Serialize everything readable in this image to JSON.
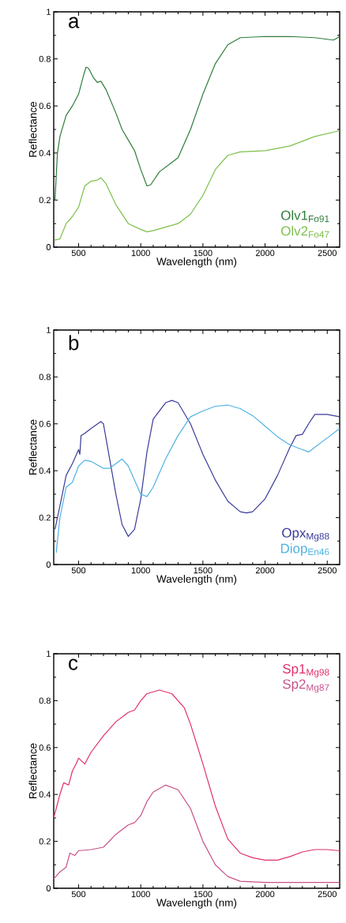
{
  "chart_data": [
    {
      "type": "line",
      "title": "a",
      "xlabel": "Wavelength (nm)",
      "ylabel": "Reflectance",
      "xlim": [
        300,
        2600
      ],
      "ylim": [
        0,
        1
      ],
      "xticks": [
        500,
        1000,
        1500,
        2000,
        2500
      ],
      "yticks": [
        0,
        0.2,
        0.4,
        0.6,
        0.8,
        1
      ],
      "legend": "bottom right",
      "marker": "none",
      "line_style": "solid",
      "series": [
        {
          "name": "Olv1$_{Fo91}$",
          "color": "#2e7d3a",
          "x": [
            310,
            330,
            350,
            400,
            450,
            500,
            540,
            560,
            580,
            620,
            650,
            680,
            720,
            800,
            850,
            900,
            950,
            1000,
            1050,
            1080,
            1150,
            1250,
            1300,
            1400,
            1500,
            1600,
            1700,
            1800,
            2000,
            2200,
            2400,
            2550,
            2600
          ],
          "values": [
            0.2,
            0.4,
            0.47,
            0.56,
            0.6,
            0.65,
            0.73,
            0.765,
            0.76,
            0.72,
            0.7,
            0.705,
            0.67,
            0.57,
            0.5,
            0.455,
            0.41,
            0.33,
            0.26,
            0.265,
            0.32,
            0.36,
            0.38,
            0.5,
            0.65,
            0.78,
            0.86,
            0.89,
            0.895,
            0.895,
            0.89,
            0.88,
            0.895
          ]
        },
        {
          "name": "Olv2$_{Fo47}$",
          "color": "#7cc04a",
          "x": [
            305,
            350,
            400,
            450,
            500,
            550,
            600,
            650,
            680,
            720,
            800,
            900,
            1000,
            1050,
            1100,
            1200,
            1300,
            1400,
            1500,
            1600,
            1700,
            1800,
            2000,
            2200,
            2400,
            2600
          ],
          "values": [
            0.03,
            0.035,
            0.1,
            0.13,
            0.17,
            0.26,
            0.28,
            0.285,
            0.295,
            0.27,
            0.18,
            0.1,
            0.075,
            0.065,
            0.07,
            0.085,
            0.1,
            0.14,
            0.22,
            0.33,
            0.39,
            0.405,
            0.41,
            0.43,
            0.47,
            0.495
          ]
        }
      ]
    },
    {
      "type": "line",
      "title": "b",
      "xlabel": "Wavelength (nm)",
      "ylabel": "Reflectance",
      "xlim": [
        300,
        2600
      ],
      "ylim": [
        0,
        1
      ],
      "xticks": [
        500,
        1000,
        1500,
        2000,
        2500
      ],
      "yticks": [
        0,
        0.2,
        0.4,
        0.6,
        0.8,
        1
      ],
      "legend": "bottom right",
      "marker": "none",
      "line_style": "solid",
      "series": [
        {
          "name": "Opx$_{Mg88}$",
          "color": "#3a3a9a",
          "x": [
            310,
            350,
            400,
            450,
            500,
            510,
            520,
            550,
            600,
            680,
            700,
            750,
            800,
            850,
            900,
            950,
            1000,
            1050,
            1100,
            1200,
            1250,
            1300,
            1400,
            1500,
            1600,
            1700,
            1800,
            1850,
            1900,
            2000,
            2100,
            2200,
            2250,
            2300,
            2350,
            2400,
            2500,
            2600
          ],
          "values": [
            0.15,
            0.25,
            0.38,
            0.43,
            0.49,
            0.47,
            0.55,
            0.56,
            0.58,
            0.61,
            0.6,
            0.45,
            0.3,
            0.17,
            0.12,
            0.15,
            0.28,
            0.48,
            0.62,
            0.69,
            0.7,
            0.69,
            0.6,
            0.47,
            0.36,
            0.27,
            0.225,
            0.22,
            0.225,
            0.28,
            0.38,
            0.5,
            0.55,
            0.555,
            0.6,
            0.64,
            0.64,
            0.63
          ]
        },
        {
          "name": "Diop$_{En46}$",
          "color": "#4fb3e3",
          "x": [
            320,
            350,
            400,
            450,
            500,
            550,
            600,
            700,
            750,
            800,
            850,
            900,
            950,
            1000,
            1050,
            1100,
            1200,
            1300,
            1400,
            1500,
            1600,
            1700,
            1800,
            1900,
            2000,
            2100,
            2200,
            2300,
            2350,
            2400,
            2500,
            2600
          ],
          "values": [
            0.05,
            0.2,
            0.33,
            0.35,
            0.42,
            0.445,
            0.44,
            0.41,
            0.41,
            0.43,
            0.45,
            0.42,
            0.36,
            0.3,
            0.29,
            0.33,
            0.45,
            0.55,
            0.63,
            0.655,
            0.675,
            0.68,
            0.665,
            0.635,
            0.59,
            0.545,
            0.51,
            0.49,
            0.48,
            0.5,
            0.54,
            0.58
          ]
        }
      ]
    },
    {
      "type": "line",
      "title": "c",
      "xlabel": "Wavelength (nm)",
      "ylabel": "Reflectance",
      "xlim": [
        300,
        2600
      ],
      "ylim": [
        0,
        1
      ],
      "xticks": [
        500,
        1000,
        1500,
        2000,
        2500
      ],
      "yticks": [
        0,
        0.2,
        0.4,
        0.6,
        0.8,
        1
      ],
      "legend": "top right",
      "marker": "none",
      "line_style": "solid",
      "series": [
        {
          "name": "Sp1$_{Mg98}$",
          "color": "#e0306a",
          "x": [
            300,
            350,
            380,
            420,
            450,
            480,
            500,
            550,
            600,
            700,
            800,
            900,
            950,
            1000,
            1050,
            1150,
            1250,
            1350,
            1400,
            1500,
            1600,
            1700,
            1800,
            1900,
            2000,
            2100,
            2200,
            2300,
            2400,
            2500,
            2600
          ],
          "values": [
            0.3,
            0.4,
            0.45,
            0.44,
            0.5,
            0.53,
            0.555,
            0.53,
            0.58,
            0.65,
            0.71,
            0.75,
            0.76,
            0.8,
            0.83,
            0.845,
            0.83,
            0.77,
            0.7,
            0.53,
            0.35,
            0.21,
            0.15,
            0.13,
            0.12,
            0.12,
            0.135,
            0.155,
            0.165,
            0.165,
            0.16
          ]
        },
        {
          "name": "Sp2$_{Mg87}$",
          "color": "#c8508a",
          "x": [
            300,
            350,
            400,
            430,
            470,
            500,
            600,
            700,
            800,
            900,
            950,
            1000,
            1050,
            1100,
            1200,
            1300,
            1400,
            1500,
            1600,
            1700,
            1800,
            2000,
            2600
          ],
          "values": [
            0.04,
            0.07,
            0.09,
            0.15,
            0.14,
            0.16,
            0.165,
            0.175,
            0.23,
            0.27,
            0.28,
            0.31,
            0.37,
            0.41,
            0.44,
            0.42,
            0.34,
            0.2,
            0.1,
            0.05,
            0.03,
            0.025,
            0.025
          ]
        }
      ]
    }
  ]
}
